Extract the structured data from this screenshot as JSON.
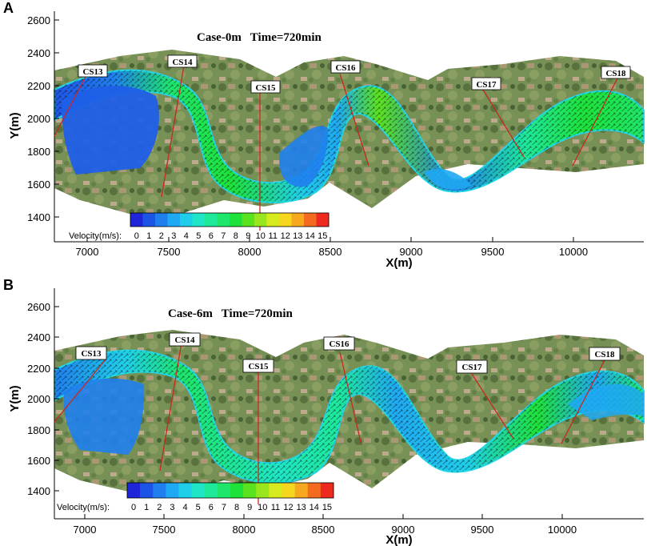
{
  "colors": {
    "background": "#ffffff",
    "axis": "#000000",
    "label_line": "#c8281e",
    "terrain_green": "#6f8a4c",
    "terrain_brown": "#a8906c",
    "river_edge": "#22d8e6"
  },
  "colorbar": {
    "label": "Velocity(m/s):",
    "ticks": [
      "0",
      "1",
      "2",
      "3",
      "4",
      "5",
      "6",
      "7",
      "8",
      "9",
      "10",
      "11",
      "12",
      "13",
      "14",
      "15"
    ],
    "colors": [
      "#1f25d8",
      "#1c55e6",
      "#1f7fee",
      "#1fa9f2",
      "#1fcfea",
      "#1fe6c6",
      "#1ee89a",
      "#1ee66a",
      "#1ee23a",
      "#5ae21e",
      "#9ae61e",
      "#d6ea1e",
      "#f6d61e",
      "#f6a81e",
      "#f46a1e",
      "#ee2a1e"
    ]
  },
  "chart_data": [
    {
      "type": "heatmap",
      "panel_label": "A",
      "title": "Case-0m   Time=720min",
      "xlabel": "X(m)",
      "ylabel": "Y(m)",
      "xlim": [
        6800,
        10420
      ],
      "ylim": [
        1260,
        2660
      ],
      "xticks": [
        7000,
        7500,
        8000,
        8500,
        9000,
        9500,
        10000
      ],
      "yticks": [
        1400,
        1600,
        1800,
        2000,
        2200,
        2400,
        2600
      ],
      "grid": false,
      "colorbar_range": [
        0,
        15
      ],
      "cross_sections": [
        {
          "name": "CS13",
          "line": [
            [
              6825,
              1900
            ],
            [
              7035,
              2290
            ]
          ]
        },
        {
          "name": "CS14",
          "line": [
            [
              7480,
              1510
            ],
            [
              7620,
              2290
            ]
          ]
        },
        {
          "name": "CS15",
          "line": [
            [
              8080,
              1410
            ],
            [
              8080,
              2170
            ]
          ]
        },
        {
          "name": "CS16",
          "line": [
            [
              8560,
              2270
            ],
            [
              8740,
              1710
            ]
          ]
        },
        {
          "name": "CS17",
          "line": [
            [
              9440,
              2170
            ],
            [
              9720,
              1760
            ]
          ]
        },
        {
          "name": "CS18",
          "line": [
            [
              10290,
              2230
            ],
            [
              10000,
              1700
            ]
          ]
        }
      ]
    },
    {
      "type": "heatmap",
      "panel_label": "B",
      "title": "Case-6m   Time=720min",
      "xlabel": "X(m)",
      "ylabel": "Y(m)",
      "xlim": [
        6800,
        10420
      ],
      "ylim": [
        1300,
        2680
      ],
      "xticks": [
        7000,
        7500,
        8000,
        8500,
        9000,
        9500,
        10000
      ],
      "yticks": [
        1400,
        1600,
        1800,
        2000,
        2200,
        2400,
        2600
      ],
      "grid": false,
      "colorbar_range": [
        0,
        15
      ],
      "cross_sections": [
        {
          "name": "CS13",
          "line": [
            [
              6825,
              1870
            ],
            [
              7140,
              2270
            ]
          ]
        },
        {
          "name": "CS14",
          "line": [
            [
              7480,
              1450
            ],
            [
              7620,
              2320
            ]
          ]
        },
        {
          "name": "CS15",
          "line": [
            [
              8080,
              1380
            ],
            [
              8080,
              2170
            ]
          ]
        },
        {
          "name": "CS16",
          "line": [
            [
              8560,
              2280
            ],
            [
              8740,
              1750
            ]
          ]
        },
        {
          "name": "CS17",
          "line": [
            [
              9390,
              2140
            ],
            [
              9720,
              1760
            ]
          ]
        },
        {
          "name": "CS18",
          "line": [
            [
              10270,
              2260
            ],
            [
              9990,
              1720
            ]
          ]
        }
      ]
    }
  ]
}
